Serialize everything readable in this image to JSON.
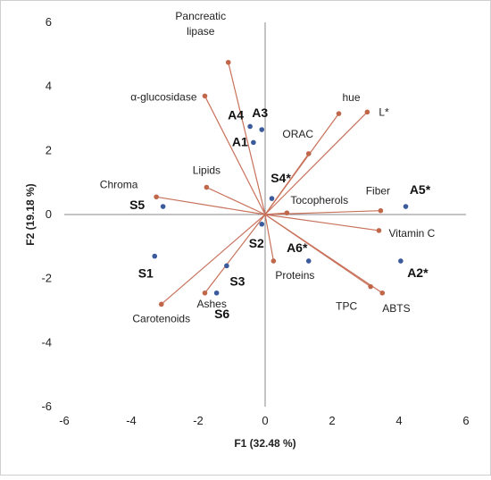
{
  "chart_data": {
    "type": "scatter",
    "subtype": "biplot",
    "title": "",
    "xlabel": "F1 (32.48 %)",
    "ylabel": "F2 (19.18 %)",
    "xlim": [
      -6,
      6
    ],
    "ylim": [
      -6,
      6
    ],
    "xticks": [
      -6,
      -4,
      -2,
      0,
      2,
      4,
      6
    ],
    "yticks": [
      -6,
      -4,
      -2,
      0,
      2,
      4,
      6
    ],
    "grid": false,
    "zero_lines": true,
    "legend": "none",
    "colors": {
      "variables": "#c0674a",
      "vector_line": "#c8715a",
      "observations": "#3a5a9c",
      "zero_line": "#8a8a8a",
      "frame": "#cfcfcf"
    },
    "variables": [
      {
        "label": "Pancreatic",
        "label2": "lipase",
        "x": -1.1,
        "y": 4.75
      },
      {
        "label": "α-glucosidase",
        "label2": "",
        "x": -1.8,
        "y": 3.7
      },
      {
        "label": "hue",
        "label2": "",
        "x": 2.2,
        "y": 3.15
      },
      {
        "label": "L*",
        "label2": "",
        "x": 3.05,
        "y": 3.2
      },
      {
        "label": "ORAC",
        "label2": "",
        "x": 1.3,
        "y": 1.9
      },
      {
        "label": "Lipids",
        "label2": "",
        "x": -1.75,
        "y": 0.85
      },
      {
        "label": "Chroma",
        "label2": "",
        "x": -3.25,
        "y": 0.55
      },
      {
        "label": "Tocopherols",
        "label2": "",
        "x": 0.65,
        "y": 0.05
      },
      {
        "label": "Fiber",
        "label2": "",
        "x": 3.45,
        "y": 0.12
      },
      {
        "label": "Vitamin C",
        "label2": "",
        "x": 3.4,
        "y": -0.5
      },
      {
        "label": "Proteins",
        "label2": "",
        "x": 0.25,
        "y": -1.45
      },
      {
        "label": "TPC",
        "label2": "",
        "x": 3.15,
        "y": -2.25
      },
      {
        "label": "ABTS",
        "label2": "",
        "x": 3.5,
        "y": -2.45
      },
      {
        "label": "Ashes",
        "label2": "",
        "x": -1.8,
        "y": -2.45
      },
      {
        "label": "Carotenoids",
        "label2": "",
        "x": -3.1,
        "y": -2.8
      }
    ],
    "observations": [
      {
        "label": "A4",
        "x": -0.45,
        "y": 2.75
      },
      {
        "label": "A3",
        "x": -0.1,
        "y": 2.65
      },
      {
        "label": "A1",
        "x": -0.35,
        "y": 2.25
      },
      {
        "label": "S4*",
        "x": 0.2,
        "y": 0.5
      },
      {
        "label": "S5",
        "x": -3.05,
        "y": 0.25
      },
      {
        "label": "A5*",
        "x": 4.2,
        "y": 0.25
      },
      {
        "label": "S2",
        "x": -0.1,
        "y": -0.3
      },
      {
        "label": "S1",
        "x": -3.3,
        "y": -1.3
      },
      {
        "label": "A6*",
        "x": 1.3,
        "y": -1.45
      },
      {
        "label": "A2*",
        "x": 4.05,
        "y": -1.45
      },
      {
        "label": "S3",
        "x": -1.15,
        "y": -1.6
      },
      {
        "label": "S6",
        "x": -1.45,
        "y": -2.45
      }
    ]
  }
}
